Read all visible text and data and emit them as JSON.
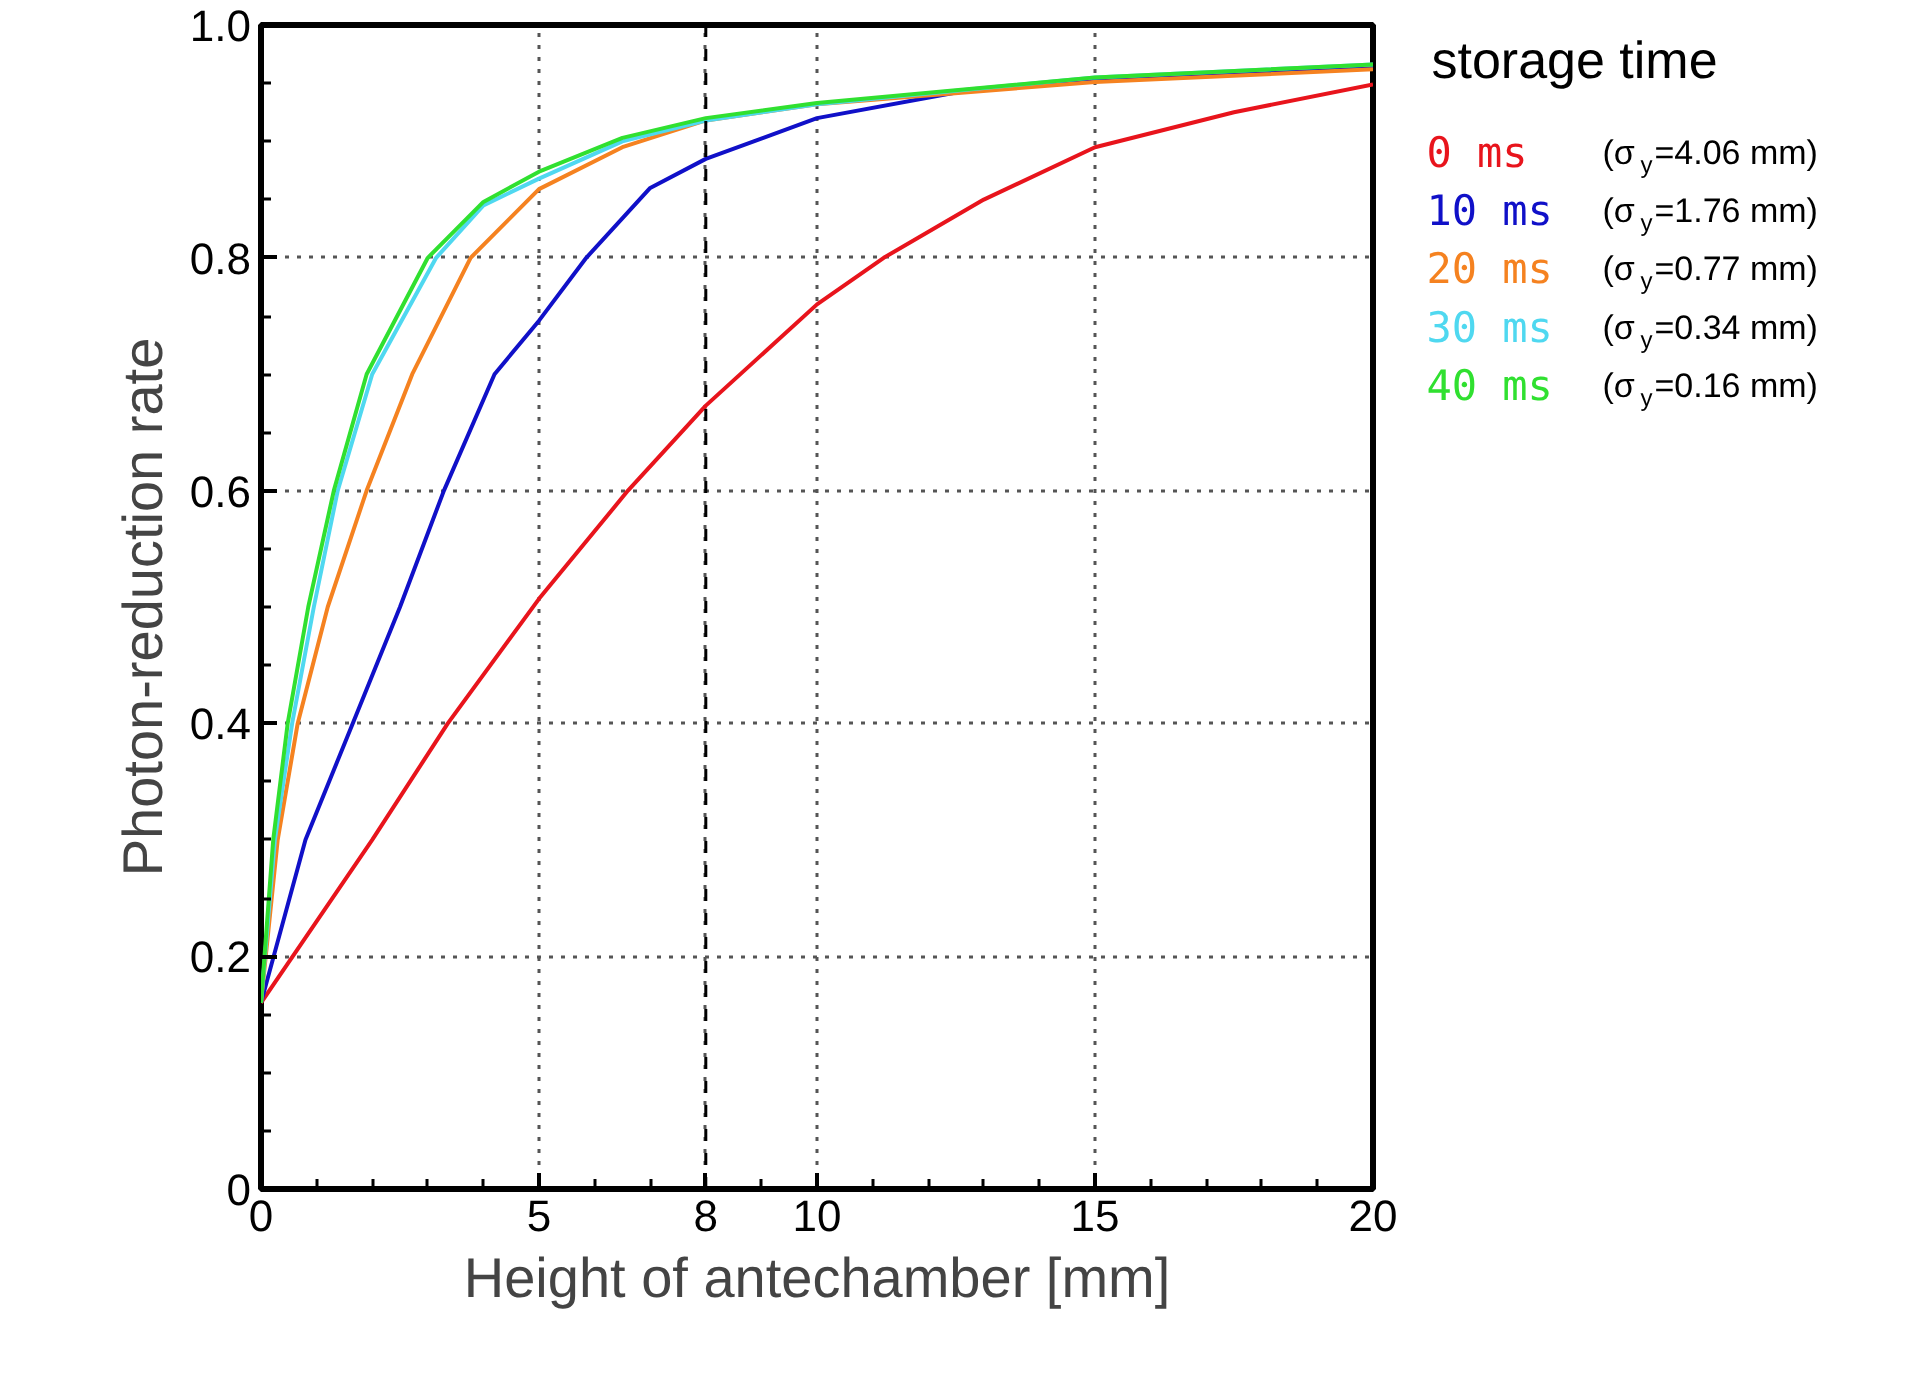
{
  "chart_data": {
    "type": "line",
    "xlabel": "Height of antechamber [mm]",
    "ylabel": "Photon-reduction rate",
    "legend_title": "storage time",
    "legend": "right",
    "grid": true,
    "line_style": "solid",
    "xlim": [
      0,
      20
    ],
    "ylim": [
      0,
      1.0
    ],
    "xticks": [
      0,
      5,
      8,
      10,
      15,
      20
    ],
    "yticks": [
      0,
      0.2,
      0.4,
      0.6,
      0.8,
      {
        "value": 1.0,
        "label": "1.0"
      }
    ],
    "ref_lines": [
      {
        "axis": "x",
        "value": 8,
        "color": "#000000",
        "line_style": "dashed"
      }
    ],
    "series": [
      {
        "name": "0 ms (σ$_{y}$=4.06 mm)",
        "color": "#e8141c",
        "x": [
          0,
          1,
          2,
          3.36,
          5,
          6.6,
          8,
          10,
          11.2,
          13,
          15,
          17.5,
          20
        ],
        "values": [
          0.16,
          0.23,
          0.3,
          0.4,
          0.507,
          0.6,
          0.673,
          0.76,
          0.8,
          0.85,
          0.895,
          0.925,
          0.949
        ]
      },
      {
        "name": "10 ms (σ$_{y}$=1.76 mm)",
        "color": "#1010c8",
        "x": [
          0,
          0.8,
          1.65,
          2.5,
          3.29,
          4.2,
          5,
          5.85,
          7,
          8,
          10,
          12.5,
          15,
          20
        ],
        "values": [
          0.16,
          0.3,
          0.4,
          0.5,
          0.6,
          0.7,
          0.746,
          0.8,
          0.86,
          0.885,
          0.92,
          0.942,
          0.954,
          0.963
        ]
      },
      {
        "name": "20 ms (σ$_{y}$=0.77 mm)",
        "color": "#f58220",
        "x": [
          0,
          0.3,
          0.66,
          1.2,
          1.9,
          2.72,
          3.77,
          5,
          6.5,
          8,
          10,
          15,
          20
        ],
        "values": [
          0.16,
          0.3,
          0.4,
          0.5,
          0.6,
          0.7,
          0.8,
          0.859,
          0.895,
          0.918,
          0.932,
          0.951,
          0.962
        ]
      },
      {
        "name": "30 ms (σ$_{y}$=0.34 mm)",
        "color": "#4fd8f0",
        "x": [
          0,
          0.25,
          0.56,
          0.95,
          1.38,
          2.0,
          3.15,
          4,
          5,
          6.5,
          8,
          10,
          15,
          20
        ],
        "values": [
          0.16,
          0.3,
          0.4,
          0.5,
          0.6,
          0.7,
          0.8,
          0.845,
          0.868,
          0.9,
          0.918,
          0.932,
          0.955,
          0.966
        ]
      },
      {
        "name": "40 ms (σ$_{y}$=0.16 mm)",
        "color": "#30e030",
        "x": [
          0,
          0.22,
          0.48,
          0.85,
          1.31,
          1.9,
          3.0,
          4,
          5,
          6.5,
          8,
          10,
          15,
          20
        ],
        "values": [
          0.16,
          0.3,
          0.4,
          0.5,
          0.6,
          0.7,
          0.8,
          0.848,
          0.874,
          0.903,
          0.92,
          0.933,
          0.955,
          0.966
        ]
      }
    ]
  }
}
